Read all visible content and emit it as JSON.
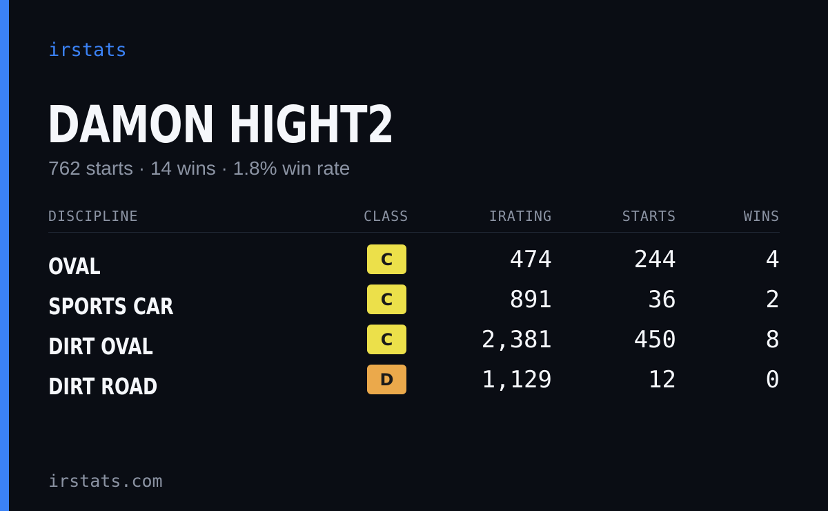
{
  "brand": "irstats",
  "driver": {
    "name": "DAMON HIGHT2",
    "summary": "762 starts · 14 wins · 1.8% win rate"
  },
  "colors": {
    "background": "#0a0d14",
    "accent": "#3b82f6",
    "class_c": "#ece04a",
    "class_d": "#eba94b",
    "muted_text": "#8b93a3"
  },
  "table": {
    "headers": {
      "discipline": "DISCIPLINE",
      "class": "CLASS",
      "irating": "IRATING",
      "starts": "STARTS",
      "wins": "WINS"
    },
    "rows": [
      {
        "discipline": "OVAL",
        "class": "C",
        "irating": "474",
        "starts": "244",
        "wins": "4"
      },
      {
        "discipline": "SPORTS CAR",
        "class": "C",
        "irating": "891",
        "starts": "36",
        "wins": "2"
      },
      {
        "discipline": "DIRT OVAL",
        "class": "C",
        "irating": "2,381",
        "starts": "450",
        "wins": "8"
      },
      {
        "discipline": "DIRT ROAD",
        "class": "D",
        "irating": "1,129",
        "starts": "12",
        "wins": "0"
      }
    ]
  },
  "footer": "irstats.com"
}
